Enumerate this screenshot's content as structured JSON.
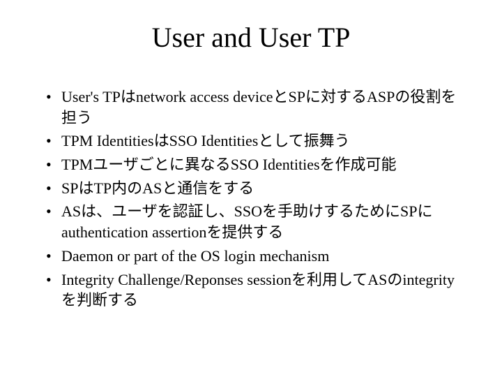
{
  "title": "User and User TP",
  "title_fontsize": 40,
  "body_fontsize": 22,
  "background_color": "#ffffff",
  "text_color": "#000000",
  "font_family": "Times New Roman",
  "bullets": [
    "User's TPはnetwork access deviceとSPに対するASPの役割を担う",
    "TPM IdentitiesはSSO Identitiesとして振舞う",
    "TPMユーザごとに異なるSSO Identitiesを作成可能",
    "SPはTP内のASと通信をする",
    "ASは、ユーザを認証し、SSOを手助けするためにSPにauthentication assertionを提供する",
    "Daemon or part of the OS login mechanism",
    "Integrity Challenge/Reponses sessionを利用してASのintegrityを判断する"
  ]
}
